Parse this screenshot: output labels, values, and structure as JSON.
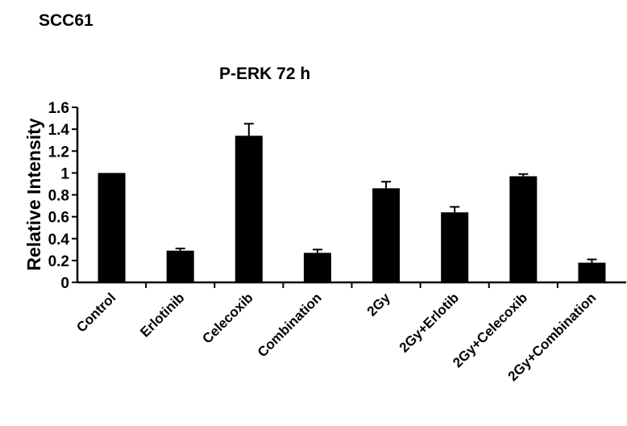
{
  "figure": {
    "label": "SCC61"
  },
  "chart_data": {
    "type": "bar",
    "title": "P-ERK 72 h",
    "xlabel": "",
    "ylabel": "Relative Intensity",
    "ylim": [
      0,
      1.6
    ],
    "yticks": [
      "0",
      "0.2",
      "0.4",
      "0.6",
      "0.8",
      "1",
      "1.2",
      "1.4",
      "1.6"
    ],
    "categories": [
      "Control",
      "Erlotinib",
      "Celecoxib",
      "Combination",
      "2Gy",
      "2Gy+Erlotib",
      "2Gy+Celecoxib",
      "2Gy+Combination"
    ],
    "values": [
      1.0,
      0.29,
      1.34,
      0.27,
      0.86,
      0.64,
      0.97,
      0.18
    ],
    "errors": [
      0.0,
      0.02,
      0.11,
      0.03,
      0.06,
      0.05,
      0.02,
      0.03
    ],
    "bar_color": "#000000",
    "grid": false,
    "legend": "none"
  }
}
